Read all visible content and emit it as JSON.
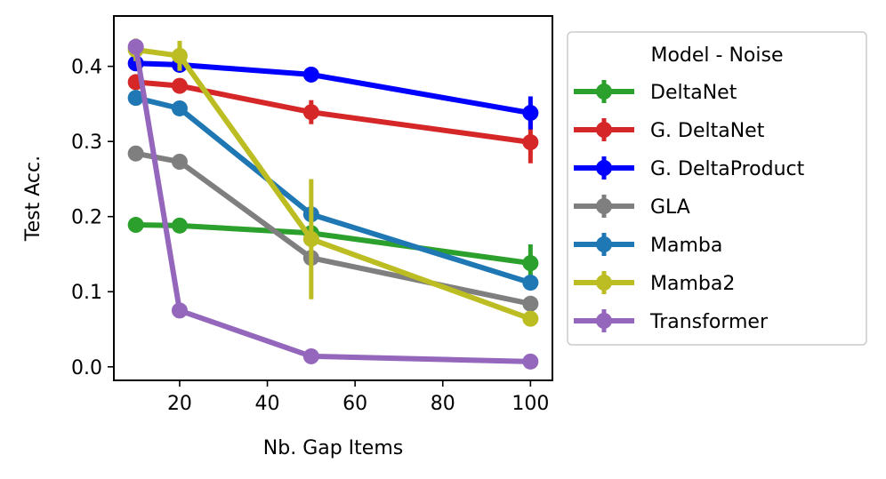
{
  "chart_data": {
    "type": "line",
    "title": "",
    "xlabel": "Nb. Gap Items",
    "ylabel": "Test Acc.",
    "xlim": [
      5,
      105
    ],
    "ylim": [
      -0.018,
      0.467
    ],
    "xticks": [
      20,
      40,
      60,
      80,
      100
    ],
    "yticks": [
      0.0,
      0.1,
      0.2,
      0.3,
      0.4
    ],
    "xtick_labels": [
      "20",
      "40",
      "60",
      "80",
      "100"
    ],
    "ytick_labels": [
      "0.0",
      "0.1",
      "0.2",
      "0.3",
      "0.4"
    ],
    "grid": false,
    "legend": {
      "title": "Model - Noise",
      "placement": "outside-right"
    },
    "x": [
      10,
      20,
      50,
      100
    ],
    "series": [
      {
        "name": "DeltaNet",
        "color": "#2ca02c",
        "values": [
          0.189,
          0.188,
          0.178,
          0.138
        ],
        "errors": [
          0.006,
          0.006,
          0.01,
          0.025
        ]
      },
      {
        "name": "G. DeltaNet",
        "color": "#d62728",
        "values": [
          0.379,
          0.374,
          0.339,
          0.299
        ],
        "errors": [
          0.008,
          0.01,
          0.016,
          0.028
        ]
      },
      {
        "name": "G. DeltaProduct",
        "color": "#0000ff",
        "values": [
          0.404,
          0.402,
          0.389,
          0.338
        ],
        "errors": [
          0.006,
          0.006,
          0.006,
          0.022
        ]
      },
      {
        "name": "GLA",
        "color": "#7f7f7f",
        "values": [
          0.284,
          0.273,
          0.145,
          0.084
        ],
        "errors": [
          0.01,
          0.01,
          0.006,
          0.006
        ]
      },
      {
        "name": "Mamba",
        "color": "#1f77b4",
        "values": [
          0.358,
          0.344,
          0.203,
          0.112
        ],
        "errors": [
          0.006,
          0.006,
          0.006,
          0.006
        ]
      },
      {
        "name": "Mamba2",
        "color": "#bcbd22",
        "values": [
          0.422,
          0.414,
          0.17,
          0.064
        ],
        "errors": [
          0.015,
          0.02,
          0.08,
          0.006
        ]
      },
      {
        "name": "Transformer",
        "color": "#9467bd",
        "values": [
          0.426,
          0.075,
          0.014,
          0.007
        ],
        "errors": [
          0.006,
          0.004,
          0.004,
          0.004
        ]
      }
    ]
  }
}
